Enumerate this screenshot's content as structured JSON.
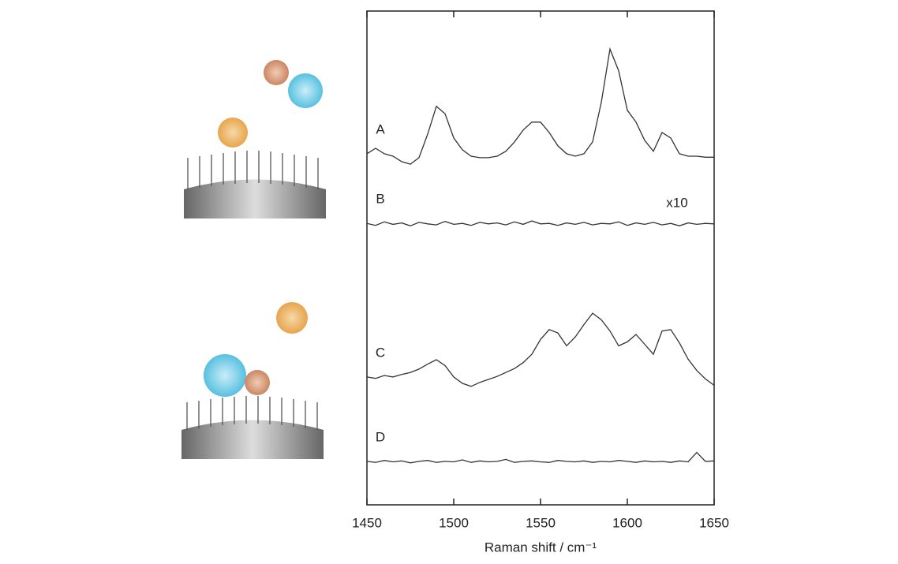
{
  "chart_data": {
    "type": "line",
    "x_label": "Raman shift / cm⁻¹",
    "x": [
      1450,
      1455,
      1460,
      1465,
      1470,
      1475,
      1480,
      1485,
      1490,
      1495,
      1500,
      1505,
      1510,
      1515,
      1520,
      1525,
      1530,
      1535,
      1540,
      1545,
      1550,
      1555,
      1560,
      1565,
      1570,
      1575,
      1580,
      1585,
      1590,
      1595,
      1600,
      1605,
      1610,
      1615,
      1620,
      1625,
      1630,
      1635,
      1640,
      1645,
      1650
    ],
    "xlim": [
      1450,
      1650
    ],
    "xticks": [
      1450,
      1500,
      1550,
      1600,
      1650
    ],
    "ylim": [
      0,
      100
    ],
    "annotation": "x10",
    "series": [
      {
        "name": "A",
        "color": "#333333",
        "values": [
          71.1,
          72.2,
          71.1,
          70.6,
          69.5,
          69.0,
          70.3,
          75.1,
          80.7,
          79.2,
          74.3,
          71.9,
          70.6,
          70.3,
          70.3,
          70.6,
          71.6,
          73.5,
          75.9,
          77.5,
          77.5,
          75.4,
          72.7,
          71.1,
          70.6,
          71.1,
          73.5,
          81.5,
          92.3,
          87.9,
          79.9,
          77.5,
          73.8,
          71.6,
          75.4,
          74.3,
          71.1,
          70.6,
          70.6,
          70.4,
          70.4
        ]
      },
      {
        "name": "B",
        "color": "#333333",
        "values": [
          57.0,
          56.6,
          57.3,
          56.8,
          57.1,
          56.5,
          57.2,
          56.9,
          56.7,
          57.4,
          56.8,
          57.0,
          56.6,
          57.2,
          56.9,
          57.1,
          56.7,
          57.3,
          56.8,
          57.5,
          56.9,
          57.0,
          56.6,
          57.1,
          56.8,
          57.2,
          56.7,
          57.0,
          56.9,
          57.3,
          56.6,
          57.1,
          56.8,
          57.2,
          56.7,
          57.0,
          56.5,
          57.1,
          56.8,
          57.0,
          56.9
        ]
      },
      {
        "name": "C",
        "color": "#333333",
        "values": [
          25.9,
          25.6,
          26.2,
          25.9,
          26.4,
          26.8,
          27.5,
          28.5,
          29.4,
          28.2,
          25.9,
          24.6,
          24.0,
          24.8,
          25.4,
          26.0,
          26.8,
          27.6,
          28.8,
          30.5,
          33.5,
          35.5,
          34.8,
          32.2,
          34.0,
          36.5,
          38.8,
          37.5,
          35.2,
          32.2,
          33.0,
          34.5,
          32.5,
          30.5,
          35.2,
          35.5,
          32.8,
          29.5,
          27.2,
          25.5,
          24.2
        ]
      },
      {
        "name": "D",
        "color": "#333333",
        "values": [
          8.8,
          8.6,
          9.0,
          8.7,
          8.9,
          8.5,
          8.8,
          9.0,
          8.6,
          8.8,
          8.7,
          9.1,
          8.6,
          8.9,
          8.7,
          8.8,
          9.2,
          8.6,
          8.8,
          8.9,
          8.7,
          8.6,
          9.0,
          8.8,
          8.7,
          8.9,
          8.6,
          8.8,
          8.7,
          9.0,
          8.8,
          8.6,
          8.9,
          8.7,
          8.8,
          8.6,
          8.9,
          8.7,
          10.6,
          8.8,
          8.9
        ]
      }
    ]
  }
}
